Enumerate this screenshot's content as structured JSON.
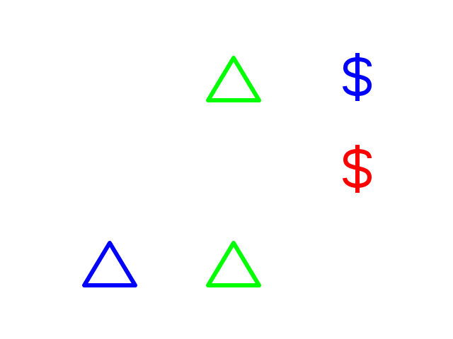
{
  "background": "#ffffff",
  "grid": [
    [
      {
        "shape": "empty"
      },
      {
        "shape": "triangle",
        "color": "#00ff00"
      },
      {
        "shape": "dollar",
        "color": "#0000ff"
      }
    ],
    [
      {
        "shape": "empty"
      },
      {
        "shape": "empty"
      },
      {
        "shape": "dollar",
        "color": "#ff0000"
      }
    ],
    [
      {
        "shape": "triangle",
        "color": "#0000ff"
      },
      {
        "shape": "triangle",
        "color": "#00ff00"
      },
      {
        "shape": "empty"
      }
    ]
  ]
}
